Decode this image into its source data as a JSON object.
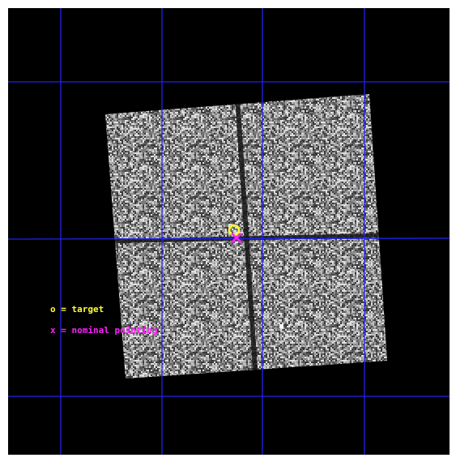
{
  "legend": {
    "target": {
      "text": "o = target",
      "color": "#ffff33"
    },
    "pointing": {
      "text": "x = nominal pointing",
      "color": "#ff22ff"
    }
  },
  "colors": {
    "background": "#000000",
    "grid": "#2222ee",
    "detector_base": "#3a3a3a",
    "detector_pixels": [
      "#5a5a5a",
      "#7a7a7a",
      "#9a9a9a",
      "#bdbdbd",
      "#e0e0e0"
    ],
    "chip_gap": "#141414"
  },
  "markers": {
    "target_symbol": "o",
    "pointing_symbol": "x"
  }
}
